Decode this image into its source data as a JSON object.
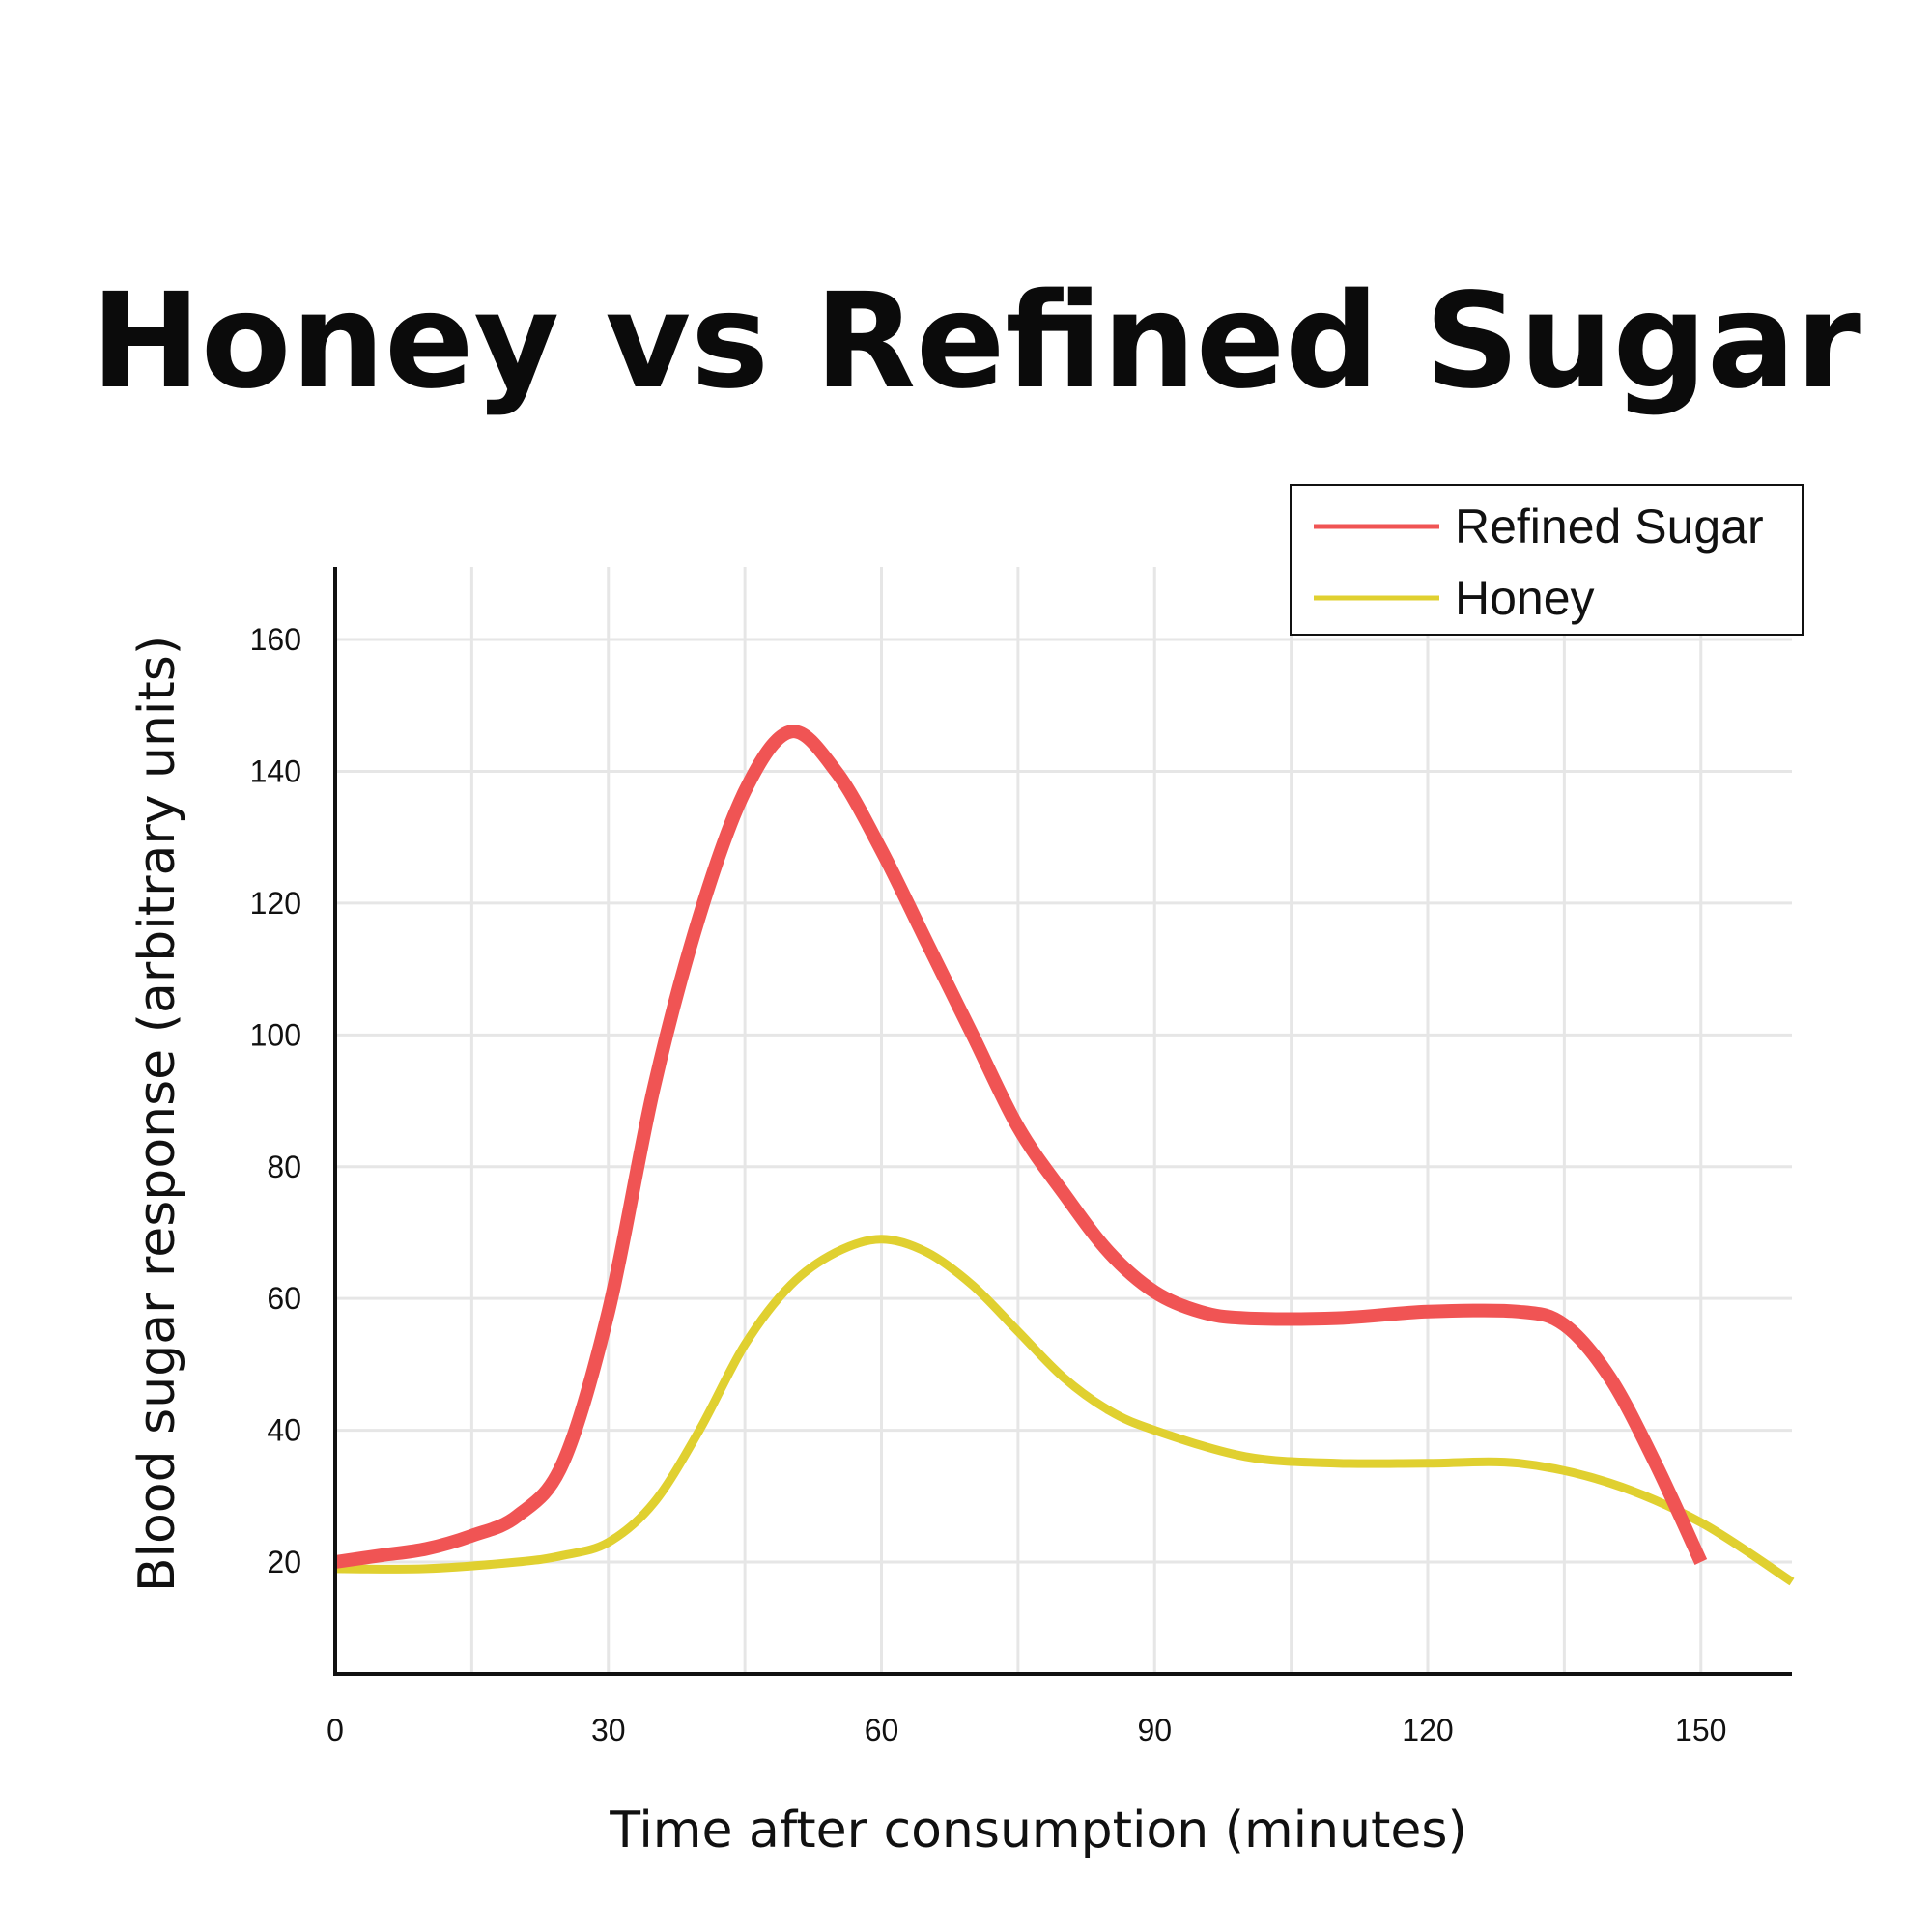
{
  "chart_data": {
    "type": "line",
    "title": "Honey vs Refined Sugar",
    "xlabel": "Time after consumption (minutes)",
    "ylabel": "Blood sugar response (arbitrary units)",
    "x_ticks": [
      0,
      30,
      60,
      90,
      120,
      150
    ],
    "y_ticks": [
      20,
      40,
      60,
      80,
      100,
      120,
      140,
      160
    ],
    "xlim": [
      0,
      160
    ],
    "ylim": [
      3,
      171
    ],
    "grid": true,
    "legend_position": "top-right",
    "series": [
      {
        "name": "Refined Sugar",
        "color": "#f05454",
        "x": [
          0,
          5,
          10,
          15,
          20,
          25,
          30,
          35,
          40,
          45,
          50,
          55,
          60,
          65,
          70,
          75,
          80,
          85,
          90,
          95,
          100,
          110,
          120,
          130,
          135,
          140,
          145,
          150
        ],
        "y": [
          20,
          21,
          22,
          24,
          27,
          35,
          58,
          92,
          118,
          137,
          146,
          140,
          128,
          114,
          100,
          86,
          76,
          67,
          61,
          58,
          57,
          57,
          58,
          58,
          56,
          48,
          35,
          20
        ]
      },
      {
        "name": "Honey",
        "color": "#e0d030",
        "x": [
          0,
          10,
          20,
          25,
          30,
          35,
          40,
          45,
          50,
          55,
          60,
          65,
          70,
          75,
          80,
          85,
          90,
          100,
          110,
          120,
          130,
          140,
          150,
          160
        ],
        "y": [
          19,
          19,
          20,
          21,
          23,
          29,
          40,
          53,
          62,
          67,
          69,
          67,
          62,
          55,
          48,
          43,
          40,
          36,
          35,
          35,
          35,
          32,
          26,
          17
        ]
      }
    ]
  }
}
